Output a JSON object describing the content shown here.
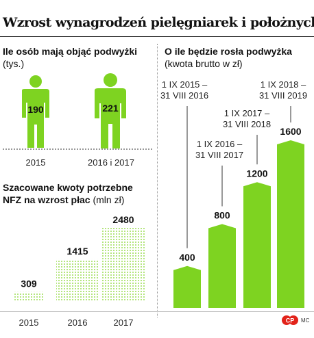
{
  "title": "Wzrost wynagrodzeń pielęgniarek i położnych",
  "colors": {
    "green": "#7ed321",
    "green_light": "#a6e85a",
    "dots": "#7ed321",
    "bg": "#ffffff"
  },
  "people": {
    "title_bold": "Ile osób mają objąć podwyżki",
    "title_unit": "(tys.)",
    "items": [
      {
        "label": "2015",
        "value": "190"
      },
      {
        "label": "2016 i 2017",
        "value": "221"
      }
    ]
  },
  "funds": {
    "title_bold": "Szacowane kwoty potrzebne NFZ na wzrost płac",
    "title_unit": "(mln zł)"
  },
  "raise": {
    "title_bold": "O ile będzie rosła podwyżka",
    "title_sub": "(kwota brutto w zł)",
    "annotations": [
      {
        "line1": "1 IX 2015 –",
        "line2": "31 VIII 2016"
      },
      {
        "line1": "1 IX 2016 –",
        "line2": "31 VIII 2017"
      },
      {
        "line1": "1 IX 2017 –",
        "line2": "31 VIII 2018"
      },
      {
        "line1": "1 IX 2018 –",
        "line2": "31 VIII 2019"
      }
    ]
  },
  "credit": {
    "logo_text": "CP",
    "agency": "MC"
  },
  "chart_data": [
    {
      "type": "pictogram",
      "title": "Ile osób mają objąć podwyżki (tys.)",
      "categories": [
        "2015",
        "2016 i 2017"
      ],
      "values": [
        190,
        221
      ]
    },
    {
      "type": "bar",
      "title": "Szacowane kwoty potrzebne NFZ na wzrost płac (mln zł)",
      "categories": [
        "2015",
        "2016",
        "2017"
      ],
      "values": [
        309,
        1415,
        2480
      ],
      "ylim": [
        0,
        2480
      ]
    },
    {
      "type": "bar",
      "title": "O ile będzie rosła podwyżka (kwota brutto w zł)",
      "categories": [
        "1 IX 2015 – 31 VIII 2016",
        "1 IX 2016 – 31 VIII 2017",
        "1 IX 2017 – 31 VIII 2018",
        "1 IX 2018 – 31 VIII 2019"
      ],
      "values": [
        400,
        800,
        1200,
        1600
      ],
      "ylim": [
        0,
        1600
      ]
    }
  ]
}
